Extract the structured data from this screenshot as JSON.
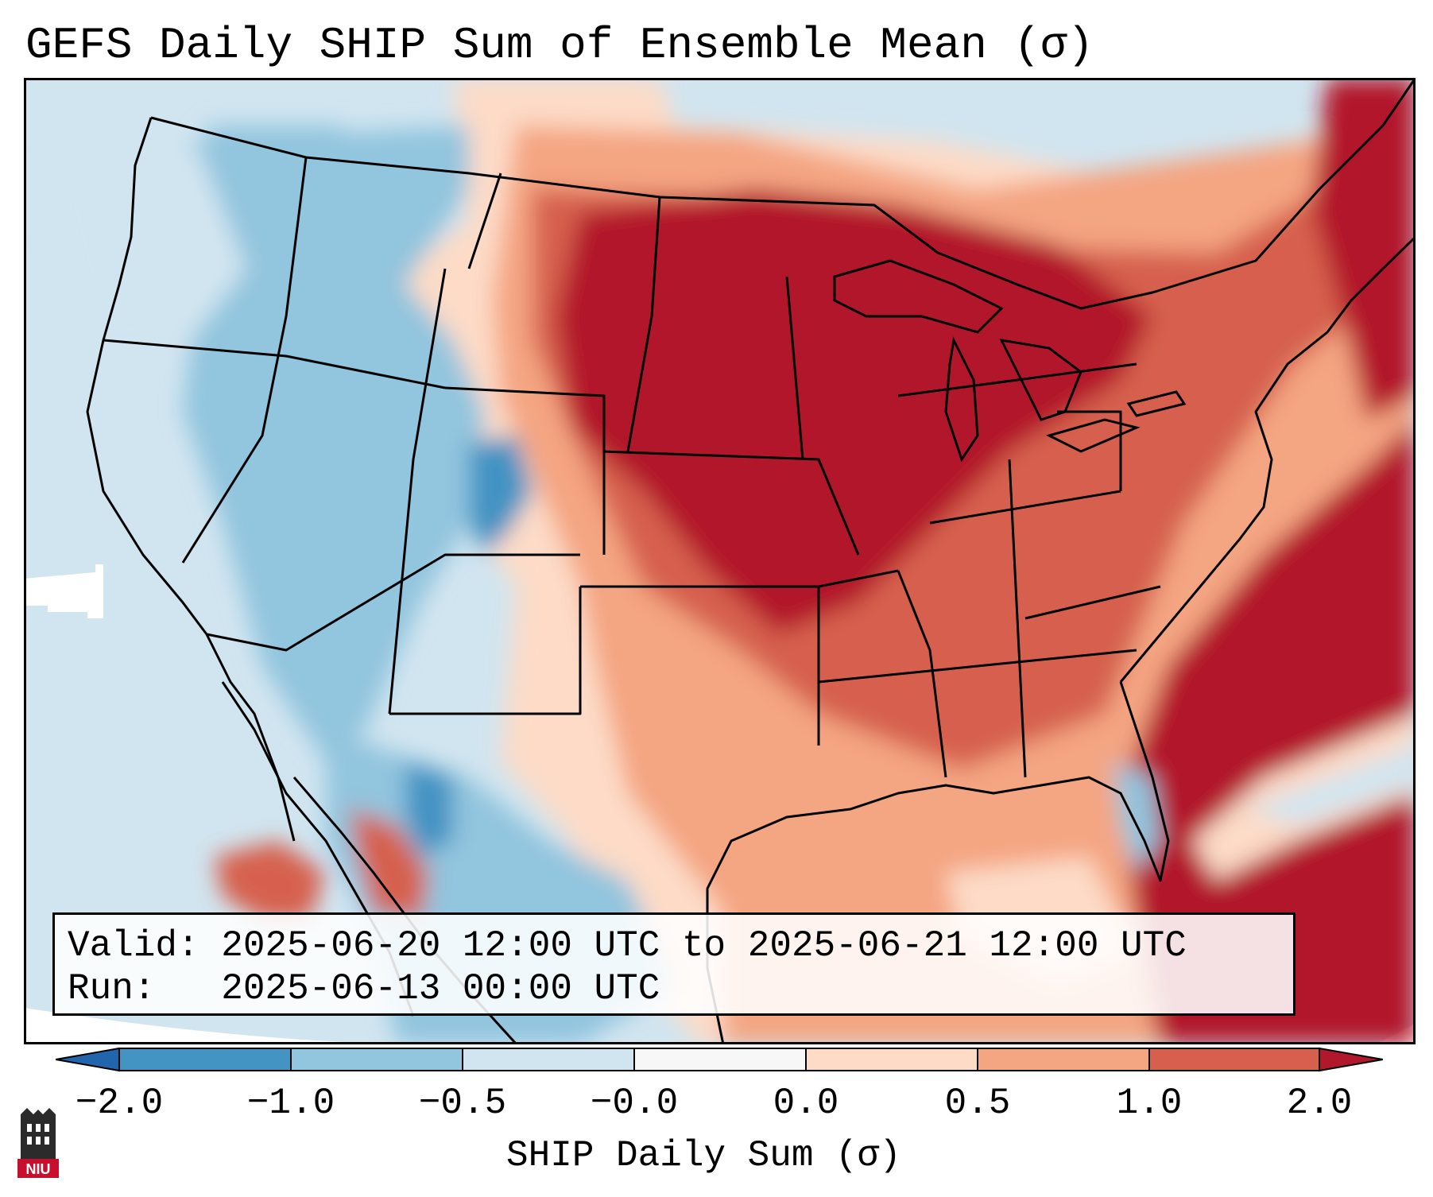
{
  "title": "GEFS Daily SHIP Sum of Ensemble Mean (σ)",
  "info": {
    "valid_label": "Valid:",
    "valid_value": "2025-06-20 12:00 UTC to 2025-06-21 12:00 UTC",
    "run_label": "Run:",
    "run_value": "2025-06-13 00:00 UTC"
  },
  "colorbar": {
    "label": "SHIP Daily Sum (σ)",
    "ticks": [
      "−2.0",
      "−1.0",
      "−0.5",
      "−0.0",
      "0.0",
      "0.5",
      "1.0",
      "2.0"
    ],
    "bins": [
      {
        "range": "< -2.0",
        "color": "#2166ac"
      },
      {
        "range": "-2.0 to -1.0",
        "color": "#4393c3"
      },
      {
        "range": "-1.0 to -0.5",
        "color": "#92c5de"
      },
      {
        "range": "-0.5 to -0.0",
        "color": "#d1e5f0"
      },
      {
        "range": "-0.0 to 0.0",
        "color": "#f7f7f7"
      },
      {
        "range": "0.0 to 0.5",
        "color": "#fddbc7"
      },
      {
        "range": "0.5 to 1.0",
        "color": "#f4a582"
      },
      {
        "range": "1.0 to 2.0",
        "color": "#d6604d"
      },
      {
        "range": "> 2.0",
        "color": "#b2182b"
      }
    ]
  },
  "logo": {
    "text": "NIU",
    "color": "#c8102e"
  }
}
